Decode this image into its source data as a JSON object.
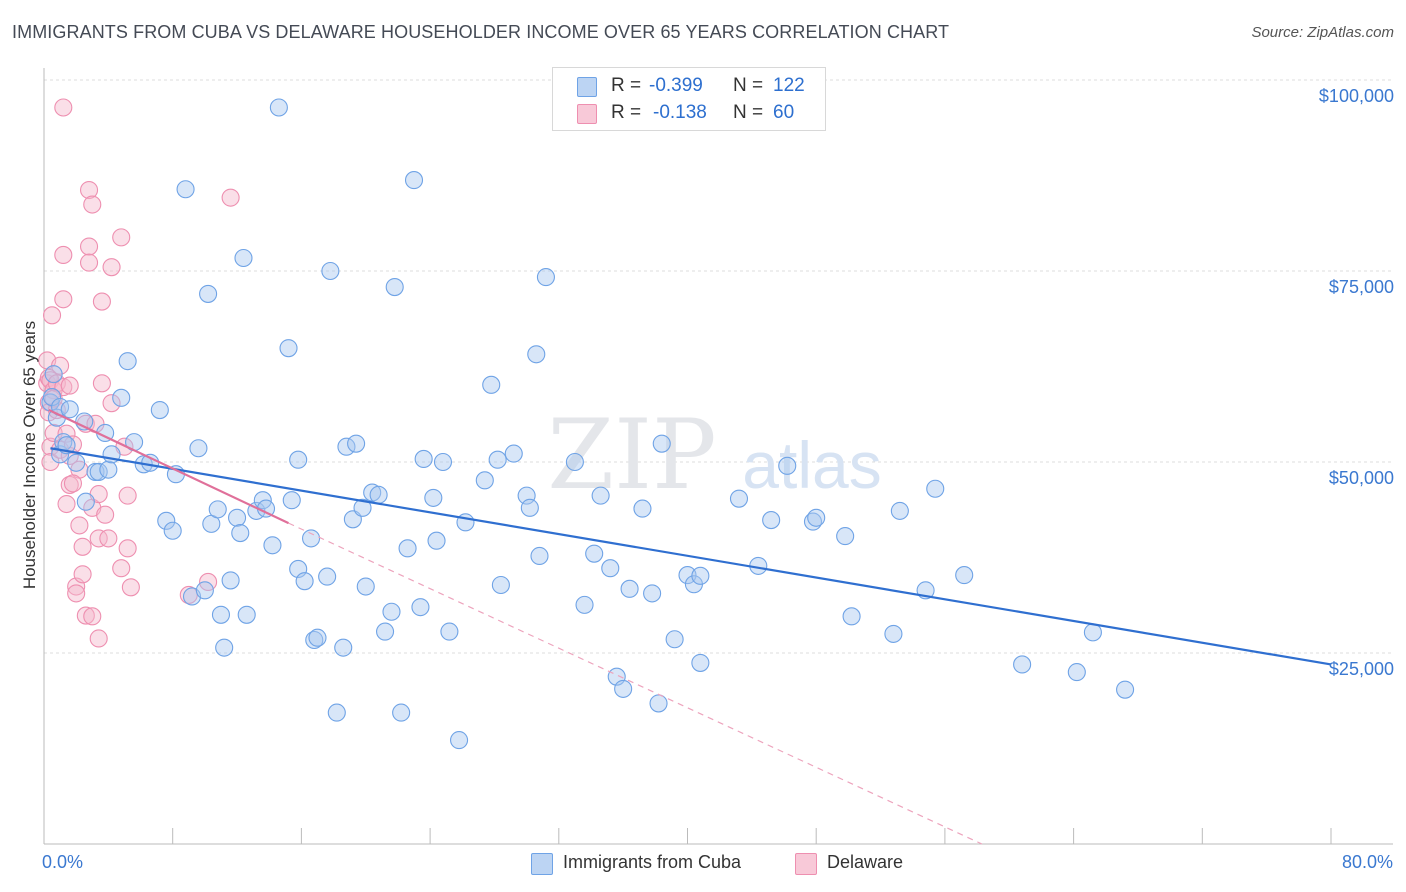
{
  "title": "IMMIGRANTS FROM CUBA VS DELAWARE HOUSEHOLDER INCOME OVER 65 YEARS CORRELATION CHART",
  "source": "Source: ZipAtlas.com",
  "watermark": {
    "zip": "ZIP",
    "atlas": "atlas"
  },
  "legend": {
    "r_label": "R =",
    "n_label": "N =",
    "rows": [
      {
        "r": "-0.399",
        "n": "122",
        "color": "#a9c8f0"
      },
      {
        "r": "-0.138",
        "n": "60",
        "color": "#f5b8cb"
      }
    ]
  },
  "bottom_legend": [
    {
      "label": "Immigrants from Cuba",
      "color": "#a9c8f0"
    },
    {
      "label": "Delaware",
      "color": "#f5b8cb"
    }
  ],
  "chart_data": {
    "type": "scatter",
    "title": "IMMIGRANTS FROM CUBA VS DELAWARE HOUSEHOLDER INCOME OVER 65 YEARS CORRELATION CHART",
    "xlabel": "",
    "ylabel": "Householder Income Over 65 years",
    "xlim": [
      0,
      80
    ],
    "ylim": [
      0,
      100000
    ],
    "x_tick_labels": [
      "0.0%",
      "80.0%"
    ],
    "y_tick_labels": [
      "$25,000",
      "$50,000",
      "$75,000",
      "$100,000"
    ],
    "y_ticks": [
      25000,
      50000,
      75000,
      100000
    ],
    "grid": "dashed horizontal",
    "legend_position": "top-center",
    "colors": {
      "cuba": "#6fa3e6",
      "delaware": "#ee8fb0",
      "cuba_line": "#2f6fd0",
      "delaware_line": "#e0709a"
    },
    "series": [
      {
        "name": "Immigrants from Cuba",
        "r": -0.399,
        "n": 122,
        "trend": {
          "x": [
            0.4,
            80
          ],
          "y": [
            51800,
            23500
          ]
        },
        "points": [
          [
            0.4,
            57800
          ],
          [
            0.5,
            58500
          ],
          [
            0.6,
            61500
          ],
          [
            0.8,
            55800
          ],
          [
            1.0,
            57200
          ],
          [
            1.0,
            51000
          ],
          [
            1.2,
            52600
          ],
          [
            1.4,
            52200
          ],
          [
            1.6,
            56900
          ],
          [
            2.0,
            49900
          ],
          [
            2.5,
            55300
          ],
          [
            2.6,
            44800
          ],
          [
            3.2,
            48700
          ],
          [
            3.4,
            48700
          ],
          [
            3.8,
            53800
          ],
          [
            4.0,
            49000
          ],
          [
            4.2,
            51000
          ],
          [
            4.8,
            58400
          ],
          [
            5.2,
            63200
          ],
          [
            5.6,
            52600
          ],
          [
            6.2,
            49700
          ],
          [
            6.6,
            49900
          ],
          [
            7.2,
            56800
          ],
          [
            7.6,
            42300
          ],
          [
            8.0,
            41000
          ],
          [
            8.2,
            48400
          ],
          [
            8.8,
            85700
          ],
          [
            9.2,
            32400
          ],
          [
            9.6,
            51800
          ],
          [
            10.0,
            33200
          ],
          [
            10.2,
            72000
          ],
          [
            10.4,
            41900
          ],
          [
            10.8,
            43800
          ],
          [
            11.0,
            30000
          ],
          [
            11.2,
            25700
          ],
          [
            11.6,
            34500
          ],
          [
            12.0,
            42700
          ],
          [
            12.2,
            40700
          ],
          [
            12.4,
            76700
          ],
          [
            12.6,
            30000
          ],
          [
            13.2,
            43600
          ],
          [
            13.6,
            45000
          ],
          [
            13.8,
            43900
          ],
          [
            14.2,
            39100
          ],
          [
            14.6,
            96400
          ],
          [
            15.2,
            64900
          ],
          [
            15.4,
            45000
          ],
          [
            15.8,
            36000
          ],
          [
            15.8,
            50300
          ],
          [
            16.2,
            34400
          ],
          [
            16.6,
            40000
          ],
          [
            16.8,
            26700
          ],
          [
            17.0,
            27000
          ],
          [
            17.6,
            35000
          ],
          [
            17.8,
            75000
          ],
          [
            18.2,
            17200
          ],
          [
            18.6,
            25700
          ],
          [
            18.8,
            52000
          ],
          [
            19.2,
            42500
          ],
          [
            19.4,
            52400
          ],
          [
            19.8,
            44000
          ],
          [
            20.0,
            33700
          ],
          [
            20.4,
            46000
          ],
          [
            20.8,
            45700
          ],
          [
            21.2,
            27800
          ],
          [
            21.6,
            30400
          ],
          [
            21.8,
            72900
          ],
          [
            22.2,
            17200
          ],
          [
            22.6,
            38700
          ],
          [
            23.0,
            86900
          ],
          [
            23.4,
            31000
          ],
          [
            23.6,
            50400
          ],
          [
            24.2,
            45300
          ],
          [
            24.4,
            39700
          ],
          [
            24.8,
            50000
          ],
          [
            25.2,
            27800
          ],
          [
            25.8,
            13600
          ],
          [
            26.2,
            42100
          ],
          [
            27.4,
            47600
          ],
          [
            27.8,
            60100
          ],
          [
            28.2,
            50300
          ],
          [
            28.4,
            33900
          ],
          [
            29.2,
            51100
          ],
          [
            30.0,
            45600
          ],
          [
            30.2,
            44000
          ],
          [
            30.6,
            64100
          ],
          [
            30.8,
            37700
          ],
          [
            31.2,
            74200
          ],
          [
            33.0,
            50000
          ],
          [
            33.6,
            31300
          ],
          [
            34.2,
            38000
          ],
          [
            34.6,
            45600
          ],
          [
            35.2,
            36100
          ],
          [
            35.6,
            21900
          ],
          [
            36.0,
            20300
          ],
          [
            36.4,
            33400
          ],
          [
            37.2,
            43900
          ],
          [
            37.8,
            32800
          ],
          [
            38.2,
            18400
          ],
          [
            38.4,
            52400
          ],
          [
            39.2,
            26800
          ],
          [
            40.0,
            35200
          ],
          [
            40.4,
            34000
          ],
          [
            40.8,
            23700
          ],
          [
            43.2,
            45200
          ],
          [
            44.4,
            36400
          ],
          [
            45.2,
            42400
          ],
          [
            46.2,
            49500
          ],
          [
            47.8,
            42200
          ],
          [
            48.0,
            42700
          ],
          [
            49.8,
            40300
          ],
          [
            50.2,
            29800
          ],
          [
            52.8,
            27500
          ],
          [
            53.2,
            43600
          ],
          [
            54.8,
            33200
          ],
          [
            55.4,
            46500
          ],
          [
            57.2,
            35200
          ],
          [
            60.8,
            23500
          ],
          [
            64.2,
            22500
          ],
          [
            65.2,
            27700
          ],
          [
            67.2,
            20200
          ],
          [
            40.8,
            35100
          ]
        ]
      },
      {
        "name": "Delaware",
        "r": -0.138,
        "n": 60,
        "trend": {
          "x": [
            0.3,
            15.2
          ],
          "y": [
            56800,
            42000
          ]
        },
        "trend_extrapolated": {
          "x": [
            15.2,
            58.3
          ],
          "y": [
            42000,
            0
          ]
        },
        "points": [
          [
            0.2,
            63300
          ],
          [
            0.2,
            60300
          ],
          [
            0.3,
            61000
          ],
          [
            0.3,
            57800
          ],
          [
            0.3,
            56500
          ],
          [
            0.4,
            60700
          ],
          [
            0.4,
            52000
          ],
          [
            0.4,
            50000
          ],
          [
            0.5,
            69200
          ],
          [
            0.6,
            59400
          ],
          [
            0.6,
            53800
          ],
          [
            0.8,
            60300
          ],
          [
            0.8,
            56800
          ],
          [
            1.0,
            62600
          ],
          [
            1.0,
            51600
          ],
          [
            1.2,
            96400
          ],
          [
            1.2,
            77100
          ],
          [
            1.2,
            71300
          ],
          [
            1.2,
            59800
          ],
          [
            1.4,
            53700
          ],
          [
            1.4,
            44500
          ],
          [
            1.6,
            60000
          ],
          [
            1.6,
            50800
          ],
          [
            1.6,
            47000
          ],
          [
            1.8,
            52300
          ],
          [
            2.0,
            33700
          ],
          [
            2.0,
            32800
          ],
          [
            2.2,
            41700
          ],
          [
            2.4,
            38900
          ],
          [
            2.4,
            35300
          ],
          [
            2.6,
            55000
          ],
          [
            2.6,
            29900
          ],
          [
            2.8,
            85600
          ],
          [
            2.8,
            78200
          ],
          [
            2.8,
            76100
          ],
          [
            3.0,
            83700
          ],
          [
            3.0,
            44000
          ],
          [
            3.0,
            29800
          ],
          [
            3.2,
            55000
          ],
          [
            3.4,
            45800
          ],
          [
            3.4,
            40000
          ],
          [
            3.4,
            26900
          ],
          [
            3.6,
            71000
          ],
          [
            3.6,
            60300
          ],
          [
            3.8,
            43100
          ],
          [
            4.0,
            40000
          ],
          [
            4.2,
            57700
          ],
          [
            4.2,
            75500
          ],
          [
            4.8,
            79400
          ],
          [
            4.8,
            36100
          ],
          [
            5.0,
            52000
          ],
          [
            5.2,
            45600
          ],
          [
            5.2,
            38700
          ],
          [
            5.4,
            33600
          ],
          [
            9.0,
            32600
          ],
          [
            10.2,
            34300
          ],
          [
            11.6,
            84600
          ],
          [
            2.2,
            49000
          ],
          [
            1.8,
            47200
          ],
          [
            0.6,
            58300
          ]
        ]
      }
    ]
  }
}
